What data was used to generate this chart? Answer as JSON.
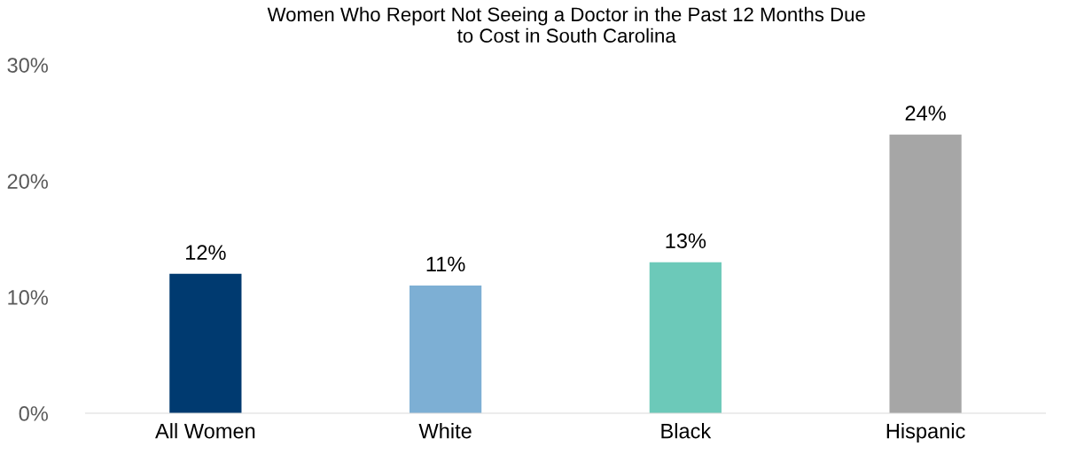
{
  "chart_data": {
    "type": "bar",
    "title": "Women Who Report Not Seeing a Doctor in the Past 12 Months Due\nto Cost in South Carolina",
    "categories": [
      "All Women",
      "White",
      "Black",
      "Hispanic"
    ],
    "values": [
      12,
      11,
      13,
      24
    ],
    "colors": [
      "#003a70",
      "#7dafd4",
      "#6cc9b9",
      "#a6a6a6"
    ],
    "value_labels": [
      "12%",
      "11%",
      "13%",
      "24%"
    ],
    "ylim": [
      0,
      30
    ],
    "yticks": [
      {
        "value": 0,
        "label": "0%"
      },
      {
        "value": 10,
        "label": "10%"
      },
      {
        "value": 20,
        "label": "20%"
      },
      {
        "value": 30,
        "label": "30%"
      }
    ],
    "grid": false,
    "legend": false
  }
}
